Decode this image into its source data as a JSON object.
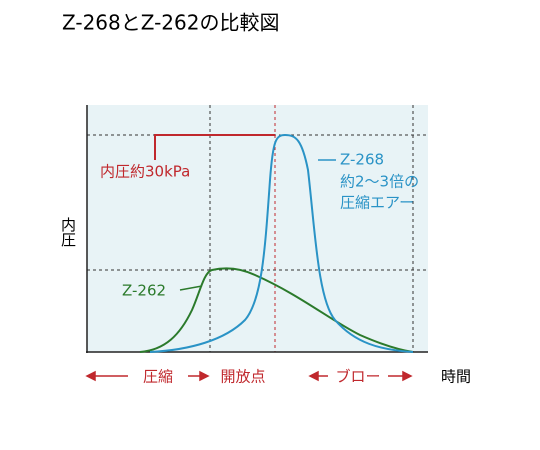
{
  "title": "Z-268とZ-262の比較図",
  "y_axis_label": "内圧",
  "x_axis_label": "時間",
  "annotations": {
    "pressure": "内圧約30kPa",
    "z268": [
      "Z-268",
      "約2～3倍の",
      "圧縮エアー"
    ],
    "z262": "Z-262"
  },
  "phases": [
    "圧縮",
    "開放点",
    "ブロー"
  ]
}
